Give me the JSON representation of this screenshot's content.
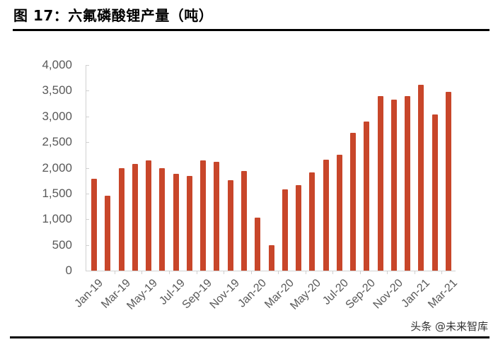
{
  "figure": {
    "title": "图 17：六氟磷酸锂产量（吨）",
    "watermark": "头条 @未来智库"
  },
  "colors": {
    "bar": "#c8462a",
    "axis": "#d0d0d0",
    "tick_text": "#595959"
  },
  "chart_data": {
    "type": "bar",
    "title": "六氟磷酸锂产量（吨）",
    "xlabel": "",
    "ylabel": "",
    "ylim": [
      0,
      4000
    ],
    "yticks": [
      "0",
      "500",
      "1,000",
      "1,500",
      "2,000",
      "2,500",
      "3,000",
      "3,500",
      "4,000"
    ],
    "grid": false,
    "legend": null,
    "categories": [
      "Jan-19",
      "Feb-19",
      "Mar-19",
      "Apr-19",
      "May-19",
      "Jun-19",
      "Jul-19",
      "Aug-19",
      "Sep-19",
      "Oct-19",
      "Nov-19",
      "Dec-19",
      "Jan-20",
      "Feb-20",
      "Mar-20",
      "Apr-20",
      "May-20",
      "Jun-20",
      "Jul-20",
      "Aug-20",
      "Sep-20",
      "Oct-20",
      "Nov-20",
      "Dec-20",
      "Jan-21",
      "Feb-21",
      "Mar-21"
    ],
    "xtick_labels_shown": [
      "Jan-19",
      "Mar-19",
      "May-19",
      "Jul-19",
      "Sep-19",
      "Nov-19",
      "Jan-20",
      "Mar-20",
      "May-20",
      "Jul-20",
      "Sep-20",
      "Nov-20",
      "Jan-21",
      "Mar-21"
    ],
    "values": [
      1790,
      1460,
      2000,
      2070,
      2140,
      2000,
      1880,
      1840,
      2140,
      2120,
      1760,
      1940,
      1030,
      500,
      1580,
      1660,
      1910,
      2160,
      2250,
      2680,
      2900,
      3390,
      3320,
      3390,
      3620,
      3040,
      3480
    ]
  }
}
